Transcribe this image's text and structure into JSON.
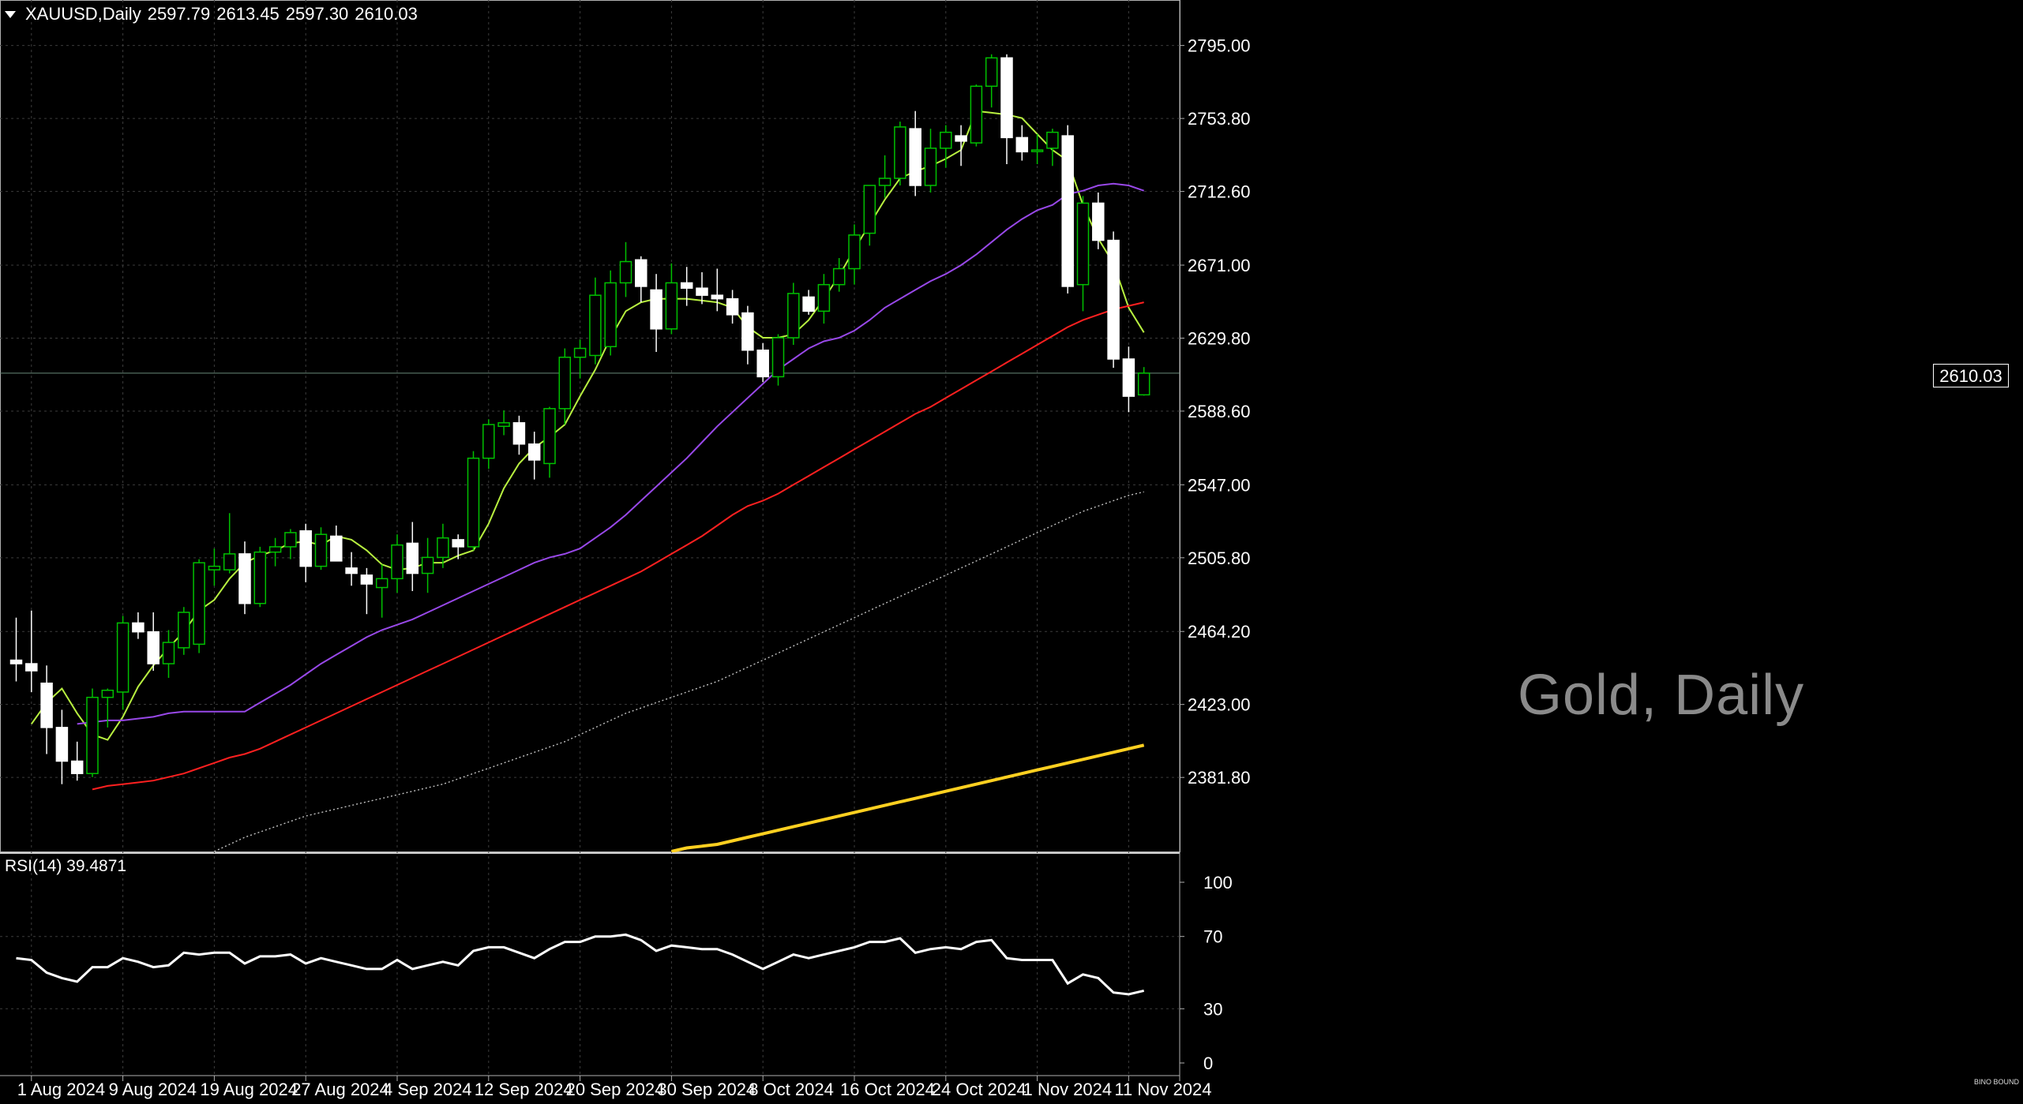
{
  "header": {
    "symbol": "XAUUSD,Daily",
    "open": "2597.79",
    "high": "2613.45",
    "low": "2597.30",
    "close": "2610.03"
  },
  "watermark": "Gold, Daily",
  "current_price_label": "2610.03",
  "rsi_panel": {
    "label": "RSI(14) 39.4871"
  },
  "brand_mark": "BINO BOUND",
  "colors": {
    "background": "#000000",
    "grid": "#3c3c3c",
    "bull_candle": "#00c000",
    "bear_candle": "#ffffff",
    "ma_fast": "#b8f040",
    "ma_20": "#9848e8",
    "ma_50": "#ff2020",
    "ma_100": "#c0c0c0",
    "ma_200": "#ffd020",
    "rsi_line": "#ffffff"
  },
  "chart_data": [
    {
      "type": "candlestick",
      "title": "XAUUSD,Daily",
      "ylim": [
        2340,
        2818
      ],
      "y_ticks": [
        "2795.00",
        "2753.80",
        "2712.60",
        "2671.00",
        "2629.80",
        "2588.60",
        "2547.00",
        "2505.80",
        "2464.20",
        "2423.00",
        "2381.80"
      ],
      "x_tick_labels": [
        {
          "index": 1,
          "label": "1 Aug 2024"
        },
        {
          "index": 7,
          "label": "9 Aug 2024"
        },
        {
          "index": 13,
          "label": "19 Aug 2024"
        },
        {
          "index": 19,
          "label": "27 Aug 2024"
        },
        {
          "index": 25,
          "label": "4 Sep 2024"
        },
        {
          "index": 31,
          "label": "12 Sep 2024"
        },
        {
          "index": 37,
          "label": "20 Sep 2024"
        },
        {
          "index": 43,
          "label": "30 Sep 2024"
        },
        {
          "index": 49,
          "label": "8 Oct 2024"
        },
        {
          "index": 55,
          "label": "16 Oct 2024"
        },
        {
          "index": 61,
          "label": "24 Oct 2024"
        },
        {
          "index": 67,
          "label": "1 Nov 2024"
        },
        {
          "index": 73,
          "label": "11 Nov 2024"
        }
      ],
      "candles": [
        {
          "o": 2448,
          "h": 2472,
          "l": 2436,
          "c": 2446
        },
        {
          "o": 2446,
          "h": 2476,
          "l": 2430,
          "c": 2442
        },
        {
          "o": 2435,
          "h": 2445,
          "l": 2395,
          "c": 2410
        },
        {
          "o": 2410,
          "h": 2420,
          "l": 2378,
          "c": 2391
        },
        {
          "o": 2391,
          "h": 2402,
          "l": 2380,
          "c": 2384
        },
        {
          "o": 2384,
          "h": 2432,
          "l": 2382,
          "c": 2427
        },
        {
          "o": 2427,
          "h": 2432,
          "l": 2410,
          "c": 2431
        },
        {
          "o": 2430,
          "h": 2473,
          "l": 2420,
          "c": 2469
        },
        {
          "o": 2469,
          "h": 2475,
          "l": 2460,
          "c": 2464
        },
        {
          "o": 2464,
          "h": 2475,
          "l": 2442,
          "c": 2446
        },
        {
          "o": 2446,
          "h": 2465,
          "l": 2438,
          "c": 2458
        },
        {
          "o": 2455,
          "h": 2478,
          "l": 2451,
          "c": 2475
        },
        {
          "o": 2457,
          "h": 2505,
          "l": 2452,
          "c": 2503
        },
        {
          "o": 2499,
          "h": 2511,
          "l": 2490,
          "c": 2501
        },
        {
          "o": 2499,
          "h": 2531,
          "l": 2497,
          "c": 2508
        },
        {
          "o": 2508,
          "h": 2515,
          "l": 2474,
          "c": 2480
        },
        {
          "o": 2480,
          "h": 2512,
          "l": 2478,
          "c": 2509
        },
        {
          "o": 2509,
          "h": 2517,
          "l": 2501,
          "c": 2512
        },
        {
          "o": 2512,
          "h": 2522,
          "l": 2505,
          "c": 2520
        },
        {
          "o": 2521,
          "h": 2525,
          "l": 2492,
          "c": 2501
        },
        {
          "o": 2501,
          "h": 2523,
          "l": 2499,
          "c": 2519
        },
        {
          "o": 2518,
          "h": 2524,
          "l": 2504,
          "c": 2504
        },
        {
          "o": 2500,
          "h": 2509,
          "l": 2490,
          "c": 2497
        },
        {
          "o": 2496,
          "h": 2500,
          "l": 2474,
          "c": 2491
        },
        {
          "o": 2489,
          "h": 2502,
          "l": 2472,
          "c": 2494
        },
        {
          "o": 2494,
          "h": 2519,
          "l": 2486,
          "c": 2513
        },
        {
          "o": 2514,
          "h": 2526,
          "l": 2487,
          "c": 2497
        },
        {
          "o": 2497,
          "h": 2517,
          "l": 2486,
          "c": 2506
        },
        {
          "o": 2506,
          "h": 2525,
          "l": 2500,
          "c": 2517
        },
        {
          "o": 2516,
          "h": 2519,
          "l": 2505,
          "c": 2512
        },
        {
          "o": 2512,
          "h": 2566,
          "l": 2510,
          "c": 2562
        },
        {
          "o": 2562,
          "h": 2584,
          "l": 2556,
          "c": 2581
        },
        {
          "o": 2580,
          "h": 2589,
          "l": 2575,
          "c": 2582
        },
        {
          "o": 2582,
          "h": 2586,
          "l": 2564,
          "c": 2570
        },
        {
          "o": 2570,
          "h": 2577,
          "l": 2550,
          "c": 2561
        },
        {
          "o": 2559,
          "h": 2591,
          "l": 2551,
          "c": 2590
        },
        {
          "o": 2590,
          "h": 2624,
          "l": 2581,
          "c": 2619
        },
        {
          "o": 2619,
          "h": 2629,
          "l": 2607,
          "c": 2624
        },
        {
          "o": 2620,
          "h": 2664,
          "l": 2615,
          "c": 2654
        },
        {
          "o": 2625,
          "h": 2668,
          "l": 2620,
          "c": 2661
        },
        {
          "o": 2661,
          "h": 2684,
          "l": 2653,
          "c": 2673
        },
        {
          "o": 2674,
          "h": 2676,
          "l": 2650,
          "c": 2659
        },
        {
          "o": 2657,
          "h": 2666,
          "l": 2622,
          "c": 2635
        },
        {
          "o": 2635,
          "h": 2672,
          "l": 2632,
          "c": 2661
        },
        {
          "o": 2661,
          "h": 2670,
          "l": 2648,
          "c": 2658
        },
        {
          "o": 2658,
          "h": 2667,
          "l": 2649,
          "c": 2654
        },
        {
          "o": 2654,
          "h": 2669,
          "l": 2645,
          "c": 2652
        },
        {
          "o": 2652,
          "h": 2657,
          "l": 2638,
          "c": 2643
        },
        {
          "o": 2644,
          "h": 2648,
          "l": 2615,
          "c": 2623
        },
        {
          "o": 2623,
          "h": 2627,
          "l": 2605,
          "c": 2608
        },
        {
          "o": 2608,
          "h": 2632,
          "l": 2603,
          "c": 2630
        },
        {
          "o": 2630,
          "h": 2661,
          "l": 2626,
          "c": 2655
        },
        {
          "o": 2653,
          "h": 2657,
          "l": 2643,
          "c": 2645
        },
        {
          "o": 2645,
          "h": 2666,
          "l": 2638,
          "c": 2660
        },
        {
          "o": 2660,
          "h": 2675,
          "l": 2656,
          "c": 2669
        },
        {
          "o": 2669,
          "h": 2694,
          "l": 2660,
          "c": 2688
        },
        {
          "o": 2689,
          "h": 2715,
          "l": 2682,
          "c": 2716
        },
        {
          "o": 2716,
          "h": 2733,
          "l": 2709,
          "c": 2720
        },
        {
          "o": 2720,
          "h": 2752,
          "l": 2716,
          "c": 2749
        },
        {
          "o": 2748,
          "h": 2758,
          "l": 2710,
          "c": 2716
        },
        {
          "o": 2716,
          "h": 2748,
          "l": 2712,
          "c": 2737
        },
        {
          "o": 2737,
          "h": 2750,
          "l": 2726,
          "c": 2746
        },
        {
          "o": 2744,
          "h": 2750,
          "l": 2727,
          "c": 2741
        },
        {
          "o": 2740,
          "h": 2773,
          "l": 2738,
          "c": 2772
        },
        {
          "o": 2772,
          "h": 2790,
          "l": 2760,
          "c": 2788
        },
        {
          "o": 2788,
          "h": 2790,
          "l": 2728,
          "c": 2743
        },
        {
          "o": 2743,
          "h": 2750,
          "l": 2730,
          "c": 2735
        },
        {
          "o": 2736,
          "h": 2745,
          "l": 2728,
          "c": 2736
        },
        {
          "o": 2737,
          "h": 2748,
          "l": 2727,
          "c": 2746
        },
        {
          "o": 2744,
          "h": 2750,
          "l": 2655,
          "c": 2659
        },
        {
          "o": 2660,
          "h": 2710,
          "l": 2645,
          "c": 2706
        },
        {
          "o": 2706,
          "h": 2712,
          "l": 2680,
          "c": 2685
        },
        {
          "o": 2685,
          "h": 2690,
          "l": 2613,
          "c": 2618
        },
        {
          "o": 2618,
          "h": 2625,
          "l": 2588,
          "c": 2597
        },
        {
          "o": 2597.79,
          "h": 2613.45,
          "l": 2597.3,
          "c": 2610.03
        }
      ],
      "series": [
        {
          "color": "#b8f040",
          "values": [
            2412,
            2424,
            2432,
            2418,
            2406,
            2403,
            2416,
            2433,
            2445,
            2455,
            2464,
            2476,
            2482,
            2494,
            2503,
            2507,
            2510,
            2514,
            2515,
            2513,
            2518,
            2516,
            2510,
            2502,
            2499,
            2500,
            2503,
            2503,
            2507,
            2510,
            2525,
            2545,
            2559,
            2568,
            2574,
            2581,
            2597,
            2612,
            2630,
            2645,
            2650,
            2652,
            2652,
            2652,
            2651,
            2650,
            2647,
            2636,
            2630,
            2630,
            2632,
            2640,
            2652,
            2665,
            2680,
            2694,
            2708,
            2720,
            2724,
            2727,
            2731,
            2736,
            2758,
            2757,
            2756,
            2754,
            2745,
            2736,
            2730,
            2705,
            2686,
            2672,
            2647,
            2633
          ]
        },
        {
          "color": "#9848e8",
          "values": [
            2412,
            2413,
            2414,
            2414,
            2415,
            2416,
            2418,
            2419,
            2419,
            2419,
            2419,
            2419,
            2424,
            2429,
            2434,
            2440,
            2446,
            2451,
            2456,
            2461,
            2465,
            2468,
            2471,
            2475,
            2479,
            2483,
            2487,
            2491,
            2495,
            2499,
            2503,
            2506,
            2508,
            2511,
            2517,
            2523,
            2530,
            2538,
            2546,
            2554,
            2562,
            2571,
            2580,
            2588,
            2596,
            2604,
            2612,
            2618,
            2624,
            2628,
            2630,
            2634,
            2640,
            2647,
            2652,
            2657,
            2662,
            2666,
            2671,
            2677,
            2684,
            2691,
            2697,
            2702,
            2705,
            2711,
            2713,
            2716,
            2717,
            2716,
            2713
          ]
        },
        {
          "color": "#ff2020",
          "values": [
            2375,
            2377,
            2378,
            2379,
            2380,
            2382,
            2384,
            2387,
            2390,
            2393,
            2395,
            2398,
            2402,
            2406,
            2410,
            2414,
            2418,
            2422,
            2426,
            2430,
            2434,
            2438,
            2442,
            2446,
            2450,
            2454,
            2458,
            2462,
            2466,
            2470,
            2474,
            2478,
            2482,
            2486,
            2490,
            2494,
            2498,
            2503,
            2508,
            2513,
            2518,
            2524,
            2530,
            2535,
            2538,
            2542,
            2547,
            2552,
            2557,
            2562,
            2567,
            2572,
            2577,
            2582,
            2587,
            2591,
            2596,
            2601,
            2606,
            2611,
            2616,
            2621,
            2626,
            2631,
            2636,
            2640,
            2643,
            2646,
            2648,
            2650
          ]
        },
        {
          "color": "#c0c0c0",
          "values": [
            2340,
            2344,
            2348,
            2351,
            2354,
            2357,
            2360,
            2362,
            2364,
            2366,
            2368,
            2370,
            2372,
            2374,
            2376,
            2378,
            2381,
            2384,
            2387,
            2390,
            2393,
            2396,
            2399,
            2402,
            2406,
            2410,
            2414,
            2418,
            2421,
            2424,
            2427,
            2430,
            2433,
            2436,
            2440,
            2444,
            2448,
            2452,
            2456,
            2460,
            2464,
            2468,
            2472,
            2476,
            2480,
            2484,
            2488,
            2492,
            2496,
            2500,
            2504,
            2508,
            2512,
            2516,
            2520,
            2524,
            2528,
            2532,
            2535,
            2538,
            2541,
            2543
          ]
        },
        {
          "color": "#ffd020",
          "values": [
            2340,
            2342,
            2343,
            2344,
            2346,
            2348,
            2350,
            2352,
            2354,
            2356,
            2358,
            2360,
            2362,
            2364,
            2366,
            2368,
            2370,
            2372,
            2374,
            2376,
            2378,
            2380,
            2382,
            2384,
            2386,
            2388,
            2390,
            2392,
            2394,
            2396,
            2398,
            2400
          ]
        }
      ]
    },
    {
      "type": "line",
      "title": "RSI(14) 39.4871",
      "ylim": [
        0,
        100
      ],
      "y_ticks": [
        "100",
        "70",
        "30",
        "0"
      ],
      "series": [
        {
          "color": "#ffffff",
          "values": [
            58,
            57,
            50,
            47,
            45,
            53,
            53,
            58,
            56,
            53,
            54,
            61,
            60,
            61,
            61,
            55,
            59,
            59,
            60,
            55,
            58,
            56,
            54,
            52,
            52,
            57,
            52,
            54,
            56,
            54,
            62,
            64,
            64,
            61,
            58,
            63,
            67,
            67,
            70,
            70,
            71,
            68,
            62,
            65,
            64,
            63,
            63,
            60,
            56,
            52,
            56,
            60,
            58,
            60,
            62,
            64,
            67,
            67,
            69,
            61,
            63,
            64,
            63,
            67,
            68,
            58,
            57,
            57,
            57,
            44,
            49,
            47,
            39,
            38,
            40
          ]
        }
      ]
    }
  ]
}
